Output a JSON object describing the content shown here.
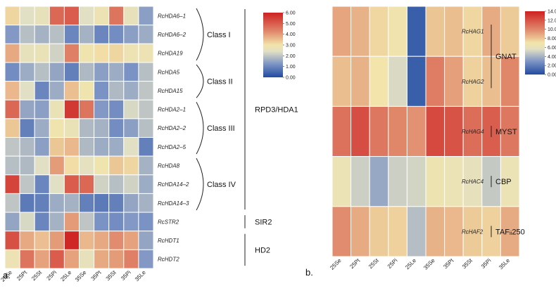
{
  "chart_data": [
    {
      "type": "heatmap",
      "panel_label": "a.",
      "columns": [
        "25Se",
        "25Pt",
        "25St",
        "25Pi",
        "25Le",
        "35Se",
        "35Pt",
        "35St",
        "35Pi",
        "35Le"
      ],
      "rows": [
        "RcHDA6–1",
        "RcHDA6–2",
        "RcHDA19",
        "RcHDA5",
        "RcHDA15",
        "RcHDA2–1",
        "RcHDA2–2",
        "RcHDA2–5",
        "RcHDA8",
        "RcHDA14–2",
        "RcHDA14–3",
        "RcSTR2",
        "RcHDT1",
        "RcHDT2"
      ],
      "values": [
        [
          3.2,
          2.4,
          2.6,
          4.8,
          5.0,
          2.4,
          2.8,
          4.6,
          2.6,
          1.4
        ],
        [
          1.3,
          1.9,
          1.7,
          1.9,
          1.0,
          1.7,
          1.0,
          1.1,
          1.4,
          1.6
        ],
        [
          3.8,
          2.6,
          2.7,
          2.2,
          4.4,
          2.9,
          3.1,
          3.2,
          2.8,
          2.8
        ],
        [
          1.1,
          1.6,
          1.9,
          1.5,
          0.9,
          1.8,
          1.4,
          1.6,
          1.2,
          1.9
        ],
        [
          3.6,
          2.4,
          1.0,
          1.6,
          3.5,
          2.9,
          1.2,
          1.8,
          1.6,
          2.0
        ],
        [
          4.8,
          1.5,
          1.4,
          2.7,
          5.6,
          4.6,
          1.3,
          1.1,
          2.3,
          2.0
        ],
        [
          3.4,
          0.9,
          1.6,
          2.9,
          2.7,
          1.8,
          1.7,
          1.1,
          1.4,
          1.9
        ],
        [
          2.0,
          1.8,
          1.4,
          3.4,
          3.6,
          1.8,
          1.6,
          1.6,
          2.4,
          0.9
        ],
        [
          1.9,
          1.8,
          2.4,
          4.0,
          3.1,
          2.5,
          2.9,
          3.4,
          3.2,
          1.7
        ],
        [
          5.4,
          2.0,
          1.0,
          2.4,
          5.0,
          4.8,
          2.2,
          1.9,
          2.2,
          1.6
        ],
        [
          2.0,
          0.8,
          0.9,
          1.6,
          1.7,
          0.9,
          0.8,
          0.9,
          1.5,
          1.7
        ],
        [
          1.5,
          2.3,
          1.0,
          1.7,
          4.0,
          2.0,
          1.2,
          1.1,
          1.3,
          1.2
        ],
        [
          5.2,
          3.8,
          3.5,
          4.0,
          5.9,
          3.6,
          3.8,
          4.2,
          3.9,
          1.5
        ],
        [
          2.8,
          4.6,
          3.9,
          5.0,
          3.9,
          2.6,
          3.8,
          4.0,
          4.4,
          1.3
        ]
      ],
      "color_scale": {
        "min": 0.0,
        "max": 6.0,
        "ticks": [
          "0.00",
          "1.00",
          "2.00",
          "3.00",
          "4.00",
          "5.00",
          "6.00"
        ]
      },
      "groups": [
        {
          "label": "Class I",
          "rows": [
            0,
            2
          ]
        },
        {
          "label": "Class II",
          "rows": [
            3,
            4
          ]
        },
        {
          "label": "Class III",
          "rows": [
            5,
            7
          ]
        },
        {
          "label": "Class IV",
          "rows": [
            8,
            10
          ]
        }
      ],
      "families": [
        {
          "label": "RPD3/HDA1",
          "rows": [
            0,
            10
          ]
        },
        {
          "label": "SIR2",
          "rows": [
            11,
            11
          ]
        },
        {
          "label": "HD2",
          "rows": [
            12,
            13
          ]
        }
      ]
    },
    {
      "type": "heatmap",
      "panel_label": "b.",
      "columns": [
        "25Se",
        "25Pt",
        "25St",
        "25Pi",
        "25Le",
        "35Se",
        "35Pt",
        "35St",
        "35Pi",
        "35Le"
      ],
      "rows": [
        "RcHAG1",
        "RcHAG2",
        "RcHAG4",
        "RcHAC4",
        "RcHAF2"
      ],
      "values": [
        [
          9.0,
          8.6,
          7.4,
          6.8,
          0.8,
          8.0,
          8.2,
          7.4,
          8.8,
          7.8
        ],
        [
          8.2,
          8.6,
          7.0,
          5.4,
          0.8,
          10.4,
          9.2,
          7.6,
          8.2,
          10.0
        ],
        [
          10.8,
          12.2,
          10.6,
          10.0,
          9.6,
          12.4,
          12.0,
          11.0,
          11.6,
          10.6
        ],
        [
          6.4,
          5.0,
          3.6,
          5.0,
          5.2,
          6.6,
          6.4,
          6.0,
          4.8,
          6.4
        ],
        [
          9.8,
          8.8,
          7.8,
          7.6,
          4.4,
          8.6,
          8.4,
          7.8,
          7.6,
          8.8
        ]
      ],
      "color_scale": {
        "min": 0.0,
        "max": 14.0,
        "ticks": [
          "0.00",
          "2.00",
          "4.00",
          "6.00",
          "8.00",
          "10.00",
          "12.00",
          "14.00"
        ]
      },
      "families": [
        {
          "label": "GNAT",
          "rows": [
            0,
            1
          ]
        },
        {
          "label": "MYST",
          "rows": [
            2,
            2
          ]
        },
        {
          "label": "CBP",
          "rows": [
            3,
            3
          ]
        },
        {
          "label": "TAFᵢᵢ250",
          "rows": [
            4,
            4
          ]
        }
      ]
    }
  ]
}
